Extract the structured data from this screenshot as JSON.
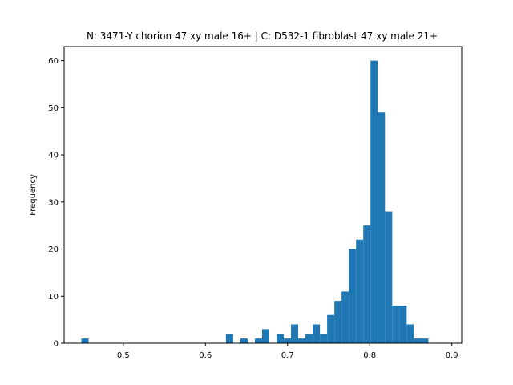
{
  "chart_data": {
    "type": "bar",
    "subtype": "histogram",
    "title": "N: 3471-Y chorion 47 xy male 16+ | C: D532-1 fibroblast 47 xy male 21+",
    "xlabel": "",
    "ylabel": "Frequency",
    "xlim": [
      0.428,
      0.912
    ],
    "ylim": [
      0,
      63
    ],
    "xticks": [
      0.5,
      0.6,
      0.7,
      0.8,
      0.9
    ],
    "xtick_labels": [
      "0.5",
      "0.6",
      "0.7",
      "0.8",
      "0.9"
    ],
    "yticks": [
      0,
      10,
      20,
      30,
      40,
      50,
      60
    ],
    "ytick_labels": [
      "0",
      "10",
      "20",
      "30",
      "40",
      "50",
      "60"
    ],
    "bin_start": 0.449,
    "bin_width": 0.0088,
    "counts": [
      1,
      0,
      0,
      0,
      0,
      0,
      0,
      0,
      0,
      0,
      0,
      0,
      0,
      0,
      0,
      0,
      0,
      0,
      0,
      0,
      2,
      0,
      1,
      0,
      1,
      3,
      0,
      2,
      1,
      4,
      1,
      2,
      4,
      2,
      6,
      9,
      11,
      20,
      22,
      25,
      60,
      49,
      28,
      8,
      8,
      4,
      1,
      1
    ],
    "bar_color": "#1f77b4",
    "grid": false,
    "legend": "none"
  }
}
